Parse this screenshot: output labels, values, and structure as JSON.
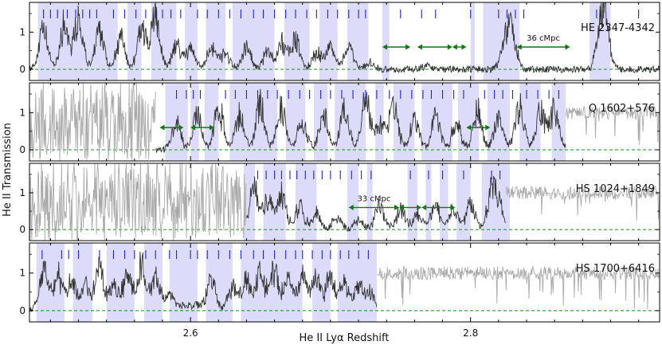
{
  "chart_data": {
    "type": "line",
    "xlabel": "He II Lyα Redshift",
    "ylabel": "He II Transmission",
    "xlim": [
      2.485,
      2.935
    ],
    "x_ticks": [
      2.6,
      2.8
    ],
    "x_tick_labels": [
      "2.6",
      "2.8"
    ],
    "y_ticks": [
      0,
      1
    ],
    "y_tick_labels": [
      "0",
      "1"
    ],
    "grid": false,
    "colors": {
      "spectrum": "#333333",
      "spectrum_outside": "#aaaaaa",
      "shading": "#dcdcfa",
      "tick_marks": "#2222cc",
      "zero_line": "#1a8a1a",
      "arrows": "#0d7a0d"
    },
    "panels": [
      {
        "name": "HE 2347-4342",
        "ylim": [
          -0.3,
          1.8
        ],
        "valid_range": [
          2.485,
          2.935
        ],
        "peaks": [
          [
            2.495,
            1.1
          ],
          [
            2.51,
            1.3
          ],
          [
            2.52,
            1.4
          ],
          [
            2.535,
            1.1
          ],
          [
            2.55,
            0.9
          ],
          [
            2.565,
            1.2
          ],
          [
            2.575,
            1.5
          ],
          [
            2.59,
            0.7
          ],
          [
            2.6,
            0.6
          ],
          [
            2.615,
            0.7
          ],
          [
            2.625,
            0.5
          ],
          [
            2.64,
            0.6
          ],
          [
            2.655,
            0.5
          ],
          [
            2.665,
            0.8
          ],
          [
            2.675,
            0.9
          ],
          [
            2.69,
            0.5
          ],
          [
            2.7,
            0.7
          ],
          [
            2.713,
            0.6
          ],
          [
            2.728,
            0.2
          ],
          [
            2.768,
            0.1
          ],
          [
            2.825,
            0.9
          ],
          [
            2.83,
            0.8
          ],
          [
            2.893,
            1.0
          ],
          [
            2.896,
            1.1
          ]
        ],
        "absorbers": [
          2.495,
          2.5,
          2.505,
          2.512,
          2.518,
          2.523,
          2.528,
          2.533,
          2.545,
          2.553,
          2.561,
          2.568,
          2.575,
          2.58,
          2.586,
          2.593,
          2.605,
          2.612,
          2.62,
          2.628,
          2.636,
          2.645,
          2.652,
          2.66,
          2.668,
          2.675,
          2.683,
          2.69,
          2.698,
          2.705,
          2.713,
          2.72,
          2.725,
          2.75,
          2.765,
          2.775,
          2.8,
          2.82,
          2.826,
          2.832,
          2.838,
          2.89,
          2.895,
          2.92
        ],
        "bands": [
          [
            2.491,
            2.548
          ],
          [
            2.555,
            2.565
          ],
          [
            2.572,
            2.59
          ],
          [
            2.596,
            2.605
          ],
          [
            2.611,
            2.625
          ],
          [
            2.63,
            2.66
          ],
          [
            2.667,
            2.685
          ],
          [
            2.692,
            2.705
          ],
          [
            2.712,
            2.727
          ],
          [
            2.737,
            2.742
          ],
          [
            2.8,
            2.803
          ],
          [
            2.809,
            2.835
          ],
          [
            2.885,
            2.9
          ]
        ],
        "arrows": [
          {
            "x1": 2.737,
            "x2": 2.757
          },
          {
            "x1": 2.762,
            "x2": 2.787
          },
          {
            "x1": 2.787,
            "x2": 2.797
          },
          {
            "x1": 2.833,
            "x2": 2.871,
            "label": "36 cMpc"
          }
        ]
      },
      {
        "name": "Q 1602+576",
        "ylim": [
          -0.3,
          1.8
        ],
        "valid_range": [
          2.575,
          2.868
        ],
        "peaks": [
          [
            2.59,
            0.8
          ],
          [
            2.605,
            1.0
          ],
          [
            2.62,
            1.3
          ],
          [
            2.635,
            1.0
          ],
          [
            2.65,
            1.3
          ],
          [
            2.665,
            1.2
          ],
          [
            2.68,
            0.9
          ],
          [
            2.695,
            1.0
          ],
          [
            2.71,
            1.2
          ],
          [
            2.725,
            1.4
          ],
          [
            2.735,
            0.8
          ],
          [
            2.745,
            1.3
          ],
          [
            2.76,
            0.9
          ],
          [
            2.775,
            1.0
          ],
          [
            2.79,
            0.8
          ],
          [
            2.805,
            1.2
          ],
          [
            2.82,
            0.9
          ],
          [
            2.835,
            1.3
          ],
          [
            2.85,
            1.1
          ],
          [
            2.86,
            1.2
          ]
        ],
        "absorbers": [
          2.59,
          2.597,
          2.602,
          2.607,
          2.625,
          2.632,
          2.64,
          2.648,
          2.655,
          2.662,
          2.67,
          2.678,
          2.685,
          2.693,
          2.7,
          2.708,
          2.716,
          2.725,
          2.733,
          2.742,
          2.75,
          2.758,
          2.766,
          2.772,
          2.78,
          2.788,
          2.795,
          2.81,
          2.817,
          2.823,
          2.83,
          2.84,
          2.848,
          2.856,
          2.863
        ],
        "bands": [
          [
            2.582,
            2.598
          ],
          [
            2.6,
            2.606
          ],
          [
            2.61,
            2.62
          ],
          [
            2.628,
            2.662
          ],
          [
            2.668,
            2.682
          ],
          [
            2.688,
            2.698
          ],
          [
            2.703,
            2.725
          ],
          [
            2.732,
            2.738
          ],
          [
            2.745,
            2.76
          ],
          [
            2.765,
            2.787
          ],
          [
            2.791,
            2.806
          ],
          [
            2.812,
            2.828
          ],
          [
            2.835,
            2.85
          ],
          [
            2.858,
            2.868
          ]
        ],
        "arrows": [
          {
            "x1": 2.578,
            "x2": 2.595
          },
          {
            "x1": 2.6,
            "x2": 2.617
          },
          {
            "x1": 2.797,
            "x2": 2.814
          }
        ]
      },
      {
        "name": "HS 1024+1849",
        "ylim": [
          -0.3,
          1.8
        ],
        "valid_range": [
          2.64,
          2.825
        ],
        "peaks": [
          [
            2.645,
            1.2
          ],
          [
            2.655,
            0.9
          ],
          [
            2.665,
            1.0
          ],
          [
            2.678,
            0.7
          ],
          [
            2.69,
            0.5
          ],
          [
            2.705,
            0.4
          ],
          [
            2.72,
            0.3
          ],
          [
            2.735,
            0.8
          ],
          [
            2.75,
            0.6
          ],
          [
            2.762,
            0.5
          ],
          [
            2.775,
            0.7
          ],
          [
            2.788,
            0.6
          ],
          [
            2.8,
            0.8
          ],
          [
            2.815,
            1.0
          ],
          [
            2.82,
            0.7
          ]
        ],
        "absorbers": [
          2.648,
          2.654,
          2.66,
          2.665,
          2.671,
          2.676,
          2.682,
          2.688,
          2.694,
          2.7,
          2.707,
          2.715,
          2.722,
          2.729,
          2.757,
          2.77,
          2.78,
          2.795,
          2.815,
          2.821
        ],
        "bands": [
          [
            2.638,
            2.646
          ],
          [
            2.652,
            2.668
          ],
          [
            2.675,
            2.69
          ],
          [
            2.712,
            2.72
          ],
          [
            2.726,
            2.73
          ],
          [
            2.755,
            2.762
          ],
          [
            2.768,
            2.772
          ],
          [
            2.778,
            2.784
          ],
          [
            2.79,
            2.8
          ],
          [
            2.808,
            2.828
          ]
        ],
        "arrows": [
          {
            "x1": 2.713,
            "x2": 2.749,
            "label": "33 cMpc"
          },
          {
            "x1": 2.749,
            "x2": 2.765
          },
          {
            "x1": 2.765,
            "x2": 2.789
          }
        ]
      },
      {
        "name": "HS 1700+6416",
        "ylim": [
          -0.3,
          1.8
        ],
        "valid_range": [
          2.485,
          2.733
        ],
        "peaks": [
          [
            2.495,
            1.1
          ],
          [
            2.505,
            1.0
          ],
          [
            2.515,
            0.8
          ],
          [
            2.525,
            0.7
          ],
          [
            2.535,
            1.2
          ],
          [
            2.545,
            0.8
          ],
          [
            2.555,
            1.0
          ],
          [
            2.565,
            1.3
          ],
          [
            2.575,
            0.9
          ],
          [
            2.585,
            0.5
          ],
          [
            2.595,
            0.2
          ],
          [
            2.605,
            0.2
          ],
          [
            2.615,
            0.9
          ],
          [
            2.63,
            0.7
          ],
          [
            2.64,
            0.9
          ],
          [
            2.65,
            1.0
          ],
          [
            2.66,
            1.2
          ],
          [
            2.67,
            0.8
          ],
          [
            2.68,
            1.0
          ],
          [
            2.69,
            0.9
          ],
          [
            2.7,
            1.0
          ],
          [
            2.71,
            0.8
          ],
          [
            2.72,
            0.7
          ],
          [
            2.728,
            0.5
          ]
        ],
        "absorbers": [
          2.494,
          2.508,
          2.513,
          2.52,
          2.535,
          2.545,
          2.553,
          2.56,
          2.568,
          2.575,
          2.585,
          2.59,
          2.6,
          2.605,
          2.612,
          2.62,
          2.628,
          2.636,
          2.645,
          2.652,
          2.66,
          2.668,
          2.675,
          2.68,
          2.687,
          2.694,
          2.7,
          2.707,
          2.713,
          2.72,
          2.727
        ],
        "bands": [
          [
            2.49,
            2.51
          ],
          [
            2.516,
            2.53
          ],
          [
            2.54,
            2.56
          ],
          [
            2.567,
            2.58
          ],
          [
            2.585,
            2.605
          ],
          [
            2.611,
            2.63
          ],
          [
            2.636,
            2.68
          ],
          [
            2.687,
            2.7
          ],
          [
            2.705,
            2.733
          ]
        ],
        "arrows": []
      }
    ]
  }
}
